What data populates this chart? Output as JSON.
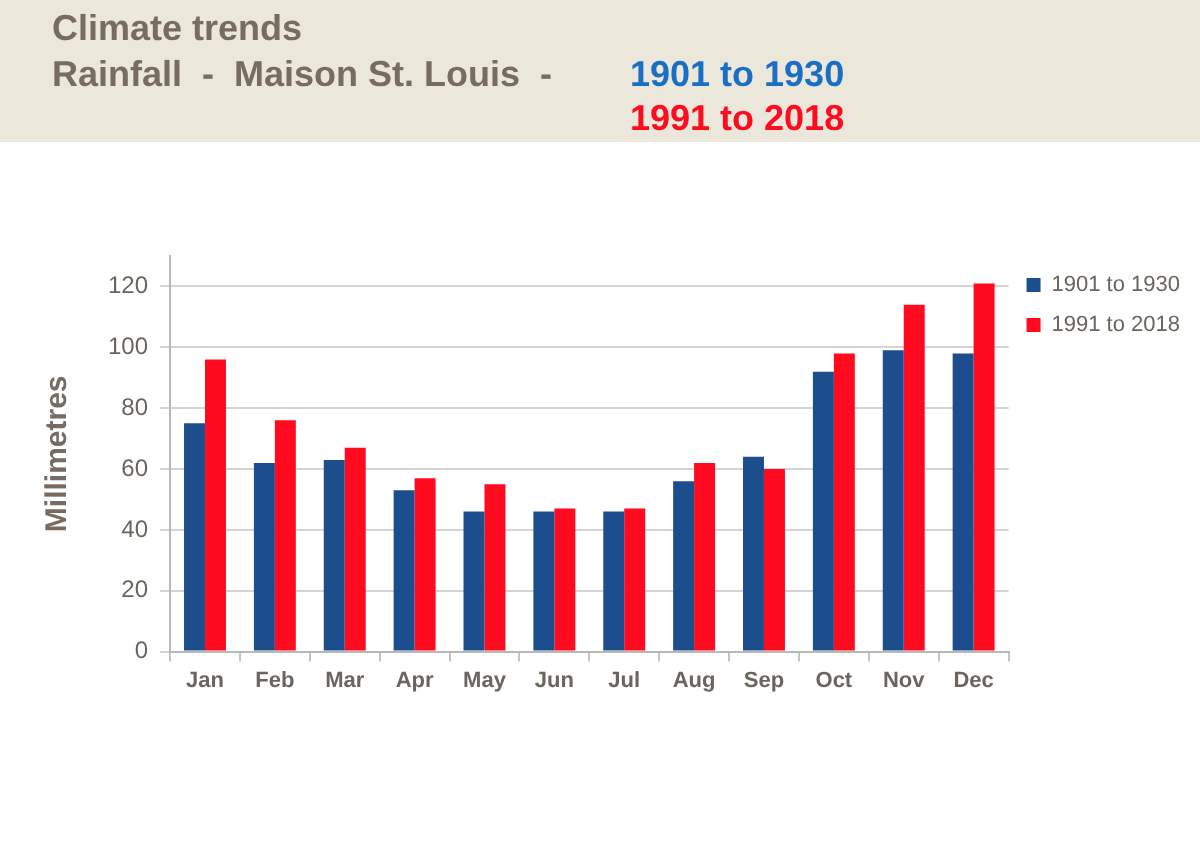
{
  "chart_data": {
    "type": "bar",
    "title": "Climate trends",
    "subtitle": "Rainfall  -  Maison St. Louis  -",
    "annotations": [
      "1901 to 1930",
      "1991 to 2018"
    ],
    "ylabel": "Millimetres",
    "categories": [
      "Jan",
      "Feb",
      "Mar",
      "Apr",
      "May",
      "Jun",
      "Jul",
      "Aug",
      "Sep",
      "Oct",
      "Nov",
      "Dec"
    ],
    "series": [
      {
        "name": "1901 to 1930",
        "color": "#1c4e8e",
        "values": [
          75,
          62,
          63,
          53,
          46,
          46,
          46,
          56,
          64,
          92,
          99,
          98
        ]
      },
      {
        "name": "1991 to 2018",
        "color": "#ff0a1e",
        "values": [
          96,
          76,
          67,
          57,
          55,
          47,
          47,
          62,
          60,
          98,
          114,
          121
        ]
      }
    ],
    "ylim": [
      0,
      130
    ],
    "yticks": [
      0,
      20,
      40,
      60,
      80,
      100,
      120
    ],
    "grid": "y",
    "legend": "top right"
  }
}
